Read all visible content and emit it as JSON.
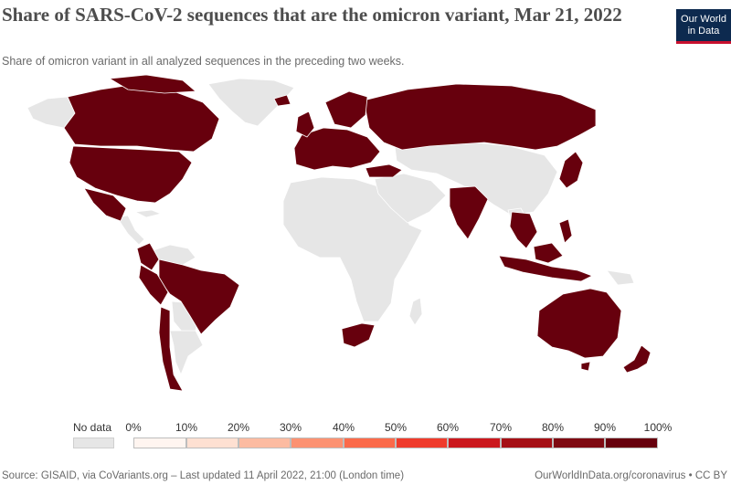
{
  "header": {
    "title": "Share of SARS-CoV-2 sequences that are the omicron variant, Mar 21, 2022",
    "subtitle": "Share of omicron variant in all analyzed sequences in the preceding two weeks."
  },
  "logo": {
    "line1": "Our World",
    "line2": "in Data"
  },
  "map": {
    "nodata_color": "#e6e6e6",
    "high_color": "#67000d",
    "border_color": "#ffffff"
  },
  "legend": {
    "nodata_label": "No data",
    "tick_labels": [
      "0%",
      "10%",
      "20%",
      "30%",
      "40%",
      "50%",
      "60%",
      "70%",
      "80%",
      "90%",
      "100%"
    ],
    "bin_colors": [
      "#fff5f0",
      "#fee0d2",
      "#fcbba1",
      "#fc9272",
      "#fb6a4a",
      "#ef3b2c",
      "#cb181d",
      "#a50f15",
      "#7f0a12",
      "#67000d"
    ]
  },
  "footer": {
    "source": "Source: GISAID, via CoVariants.org – Last updated 11 April 2022, 21:00 (London time)",
    "url": "OurWorldInData.org/coronavirus • CC BY"
  }
}
